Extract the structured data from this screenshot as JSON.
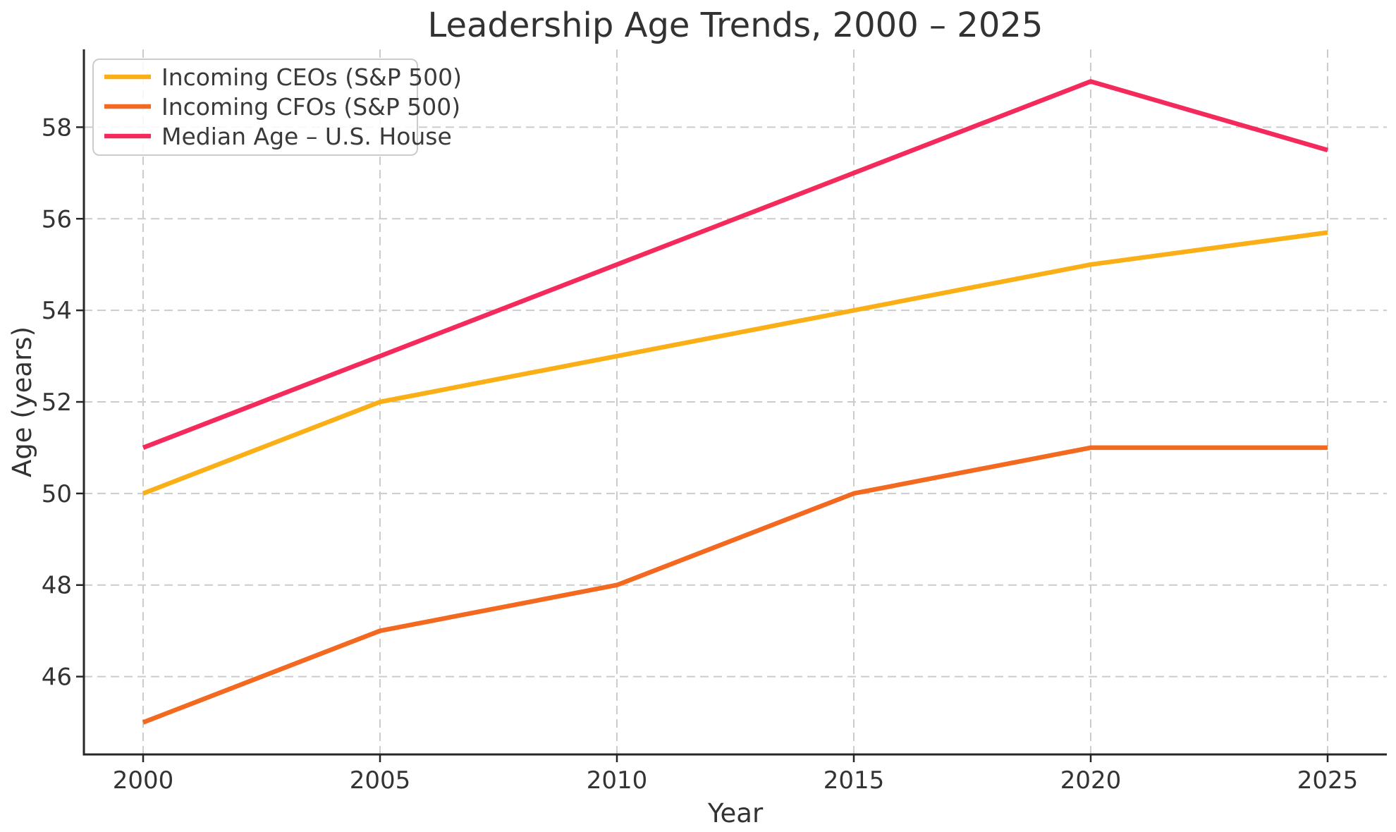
{
  "page": {
    "title": "Leadership Age Trends, 2000 – 2025"
  },
  "chart_data": {
    "type": "line",
    "title": "Leadership Age Trends, 2000 – 2025",
    "xlabel": "Year",
    "ylabel": "Age (years)",
    "x": [
      2000,
      2005,
      2010,
      2015,
      2020,
      2025
    ],
    "series": [
      {
        "name": "Incoming CEOs (S&P 500)",
        "color": "#FBAF17",
        "values": [
          50,
          52,
          53,
          54,
          55,
          55.7
        ]
      },
      {
        "name": "Incoming CFOs (S&P 500)",
        "color": "#F2691F",
        "values": [
          45,
          47,
          48,
          50,
          51,
          51
        ]
      },
      {
        "name": "Median Age – U.S. House",
        "color": "#F42A5C",
        "values": [
          51,
          53,
          55,
          57,
          59,
          57.5
        ]
      }
    ],
    "x_ticks": [
      2000,
      2005,
      2010,
      2015,
      2020,
      2025
    ],
    "y_ticks": [
      46,
      48,
      50,
      52,
      54,
      56,
      58
    ],
    "xlim": [
      1998.75,
      2026.25
    ],
    "ylim": [
      44.3,
      59.7
    ],
    "grid": true,
    "grid_style": "dashed",
    "legend_position": "upper-left",
    "colors": {
      "grid": "#cccccc",
      "spine": "#262626",
      "tick": "#262626",
      "text": "#333333",
      "legend_border": "#cccccc",
      "legend_bg": "rgba(255,255,255,0.85)"
    }
  }
}
